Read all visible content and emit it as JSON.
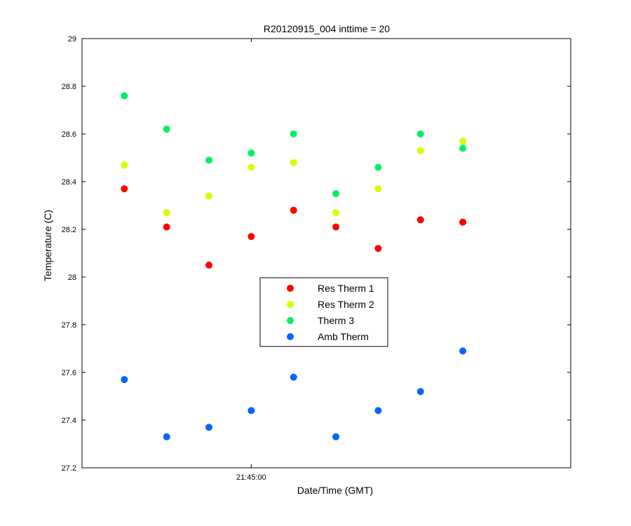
{
  "chart_data": {
    "type": "scatter",
    "title": "R20120915_004 inttime = 20",
    "xlabel": "Date/Time (GMT)",
    "ylabel": "Temperature (C)",
    "x_tick_labels": [
      "21:45:00"
    ],
    "x_tick_values": [
      4
    ],
    "y_tick_labels": [
      "27.2",
      "27.4",
      "27.6",
      "27.8",
      "28",
      "28.2",
      "28.4",
      "28.6",
      "28.8",
      "29"
    ],
    "ylim": [
      27.2,
      29.0
    ],
    "xlim": [
      0,
      11.55
    ],
    "x": [
      1,
      2,
      3,
      4,
      5,
      6,
      7,
      8,
      9
    ],
    "grid": false,
    "legend_position": "center",
    "series": [
      {
        "name": "Res Therm 1",
        "color": "#ff0000",
        "values": [
          28.37,
          28.21,
          28.05,
          28.17,
          28.28,
          28.21,
          28.12,
          28.24,
          28.23
        ]
      },
      {
        "name": "Res Therm 2",
        "color": "#d4ff00",
        "values": [
          28.47,
          28.27,
          28.34,
          28.46,
          28.48,
          28.27,
          28.37,
          28.53,
          28.57
        ]
      },
      {
        "name": "Therm 3",
        "color": "#00f064",
        "values": [
          28.76,
          28.62,
          28.49,
          28.52,
          28.6,
          28.35,
          28.46,
          28.6,
          28.54
        ]
      },
      {
        "name": "Amb Therm",
        "color": "#0066ff",
        "values": [
          27.57,
          27.33,
          27.37,
          27.44,
          27.58,
          27.33,
          27.44,
          27.52,
          27.69
        ]
      }
    ]
  }
}
